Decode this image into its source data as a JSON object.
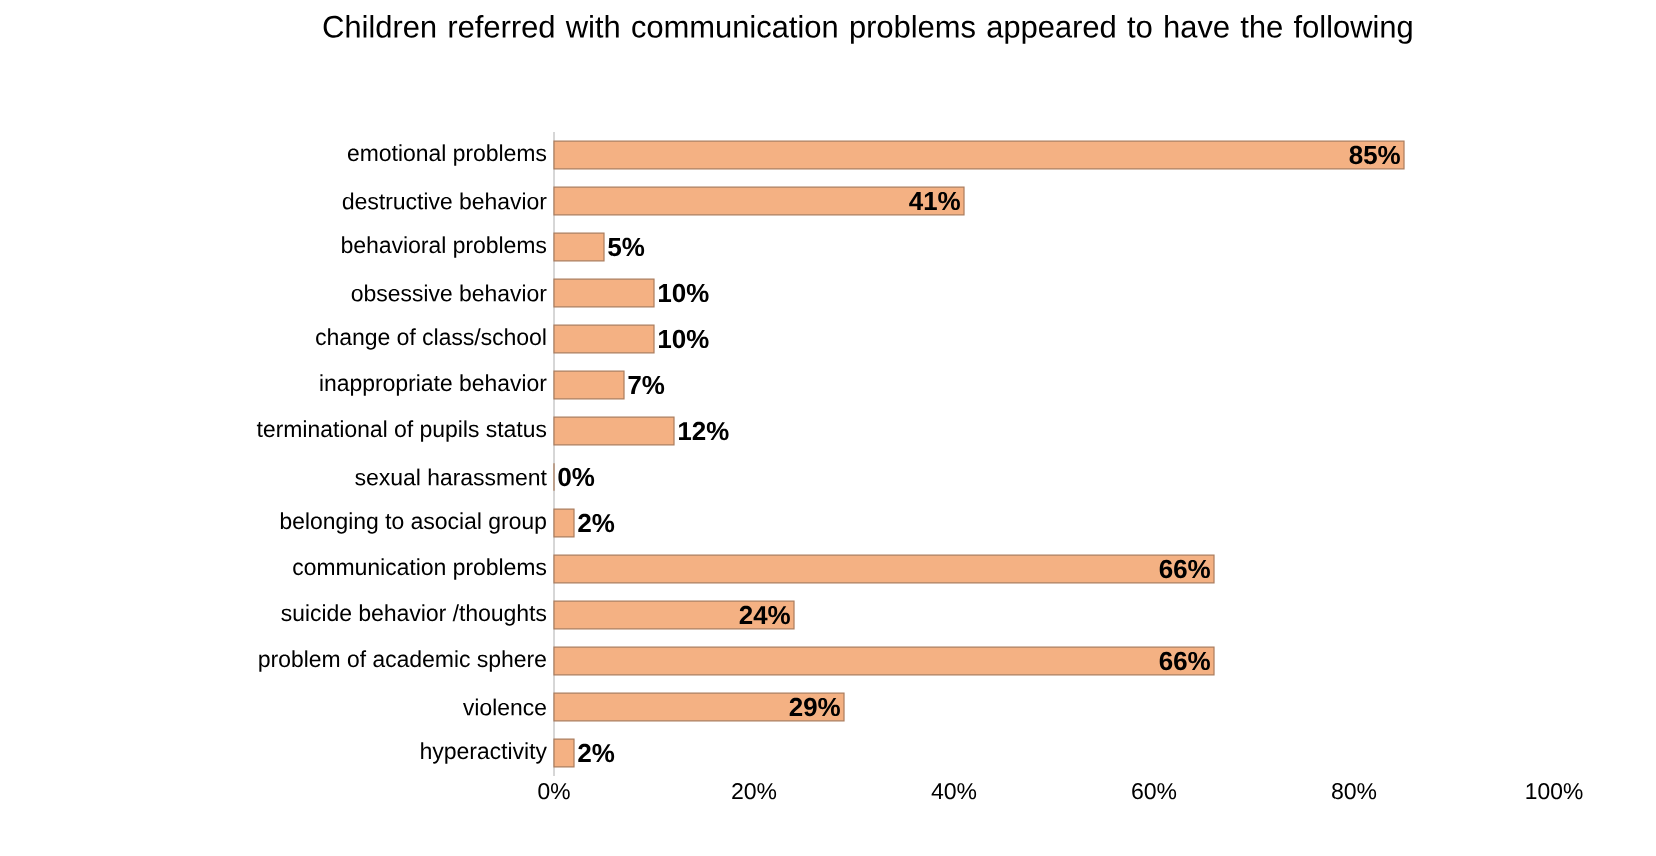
{
  "chart_data": {
    "type": "bar",
    "orientation": "horizontal",
    "title": "Children referred with communication problems appeared to have the following",
    "categories": [
      "emotional problems",
      "destructive behavior",
      "behavioral problems",
      "obsessive behavior",
      "change of class/school",
      "inappropriate behavior",
      "terminational of pupils status",
      "sexual harassment",
      "belonging to asocial group",
      "communication problems",
      "suicide behavior /thoughts",
      "problem of academic sphere",
      "violence",
      "hyperactivity"
    ],
    "values": [
      85,
      41,
      5,
      10,
      10,
      7,
      12,
      0,
      2,
      66,
      24,
      66,
      29,
      2
    ],
    "value_labels": [
      "85%",
      "41%",
      "5%",
      "10%",
      "10%",
      "7%",
      "12%",
      "0%",
      "2%",
      "66%",
      "24%",
      "66%",
      "29%",
      "2%"
    ],
    "color": "#f4b183",
    "xlim": [
      0,
      100
    ],
    "xticks": [
      {
        "value": 0,
        "label": "0%"
      },
      {
        "value": 20,
        "label": "20%"
      },
      {
        "value": 40,
        "label": "40%"
      },
      {
        "value": 60,
        "label": "60%"
      },
      {
        "value": 80,
        "label": "80%"
      },
      {
        "value": 100,
        "label": "100%"
      }
    ],
    "grid": false
  }
}
